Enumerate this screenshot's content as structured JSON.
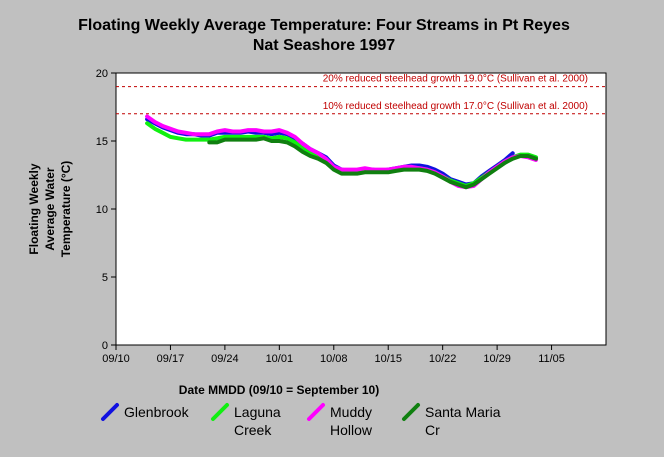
{
  "chart_data": {
    "type": "line",
    "title": "Floating Weekly Average Temperature: Four Streams in Pt Reyes",
    "subtitle": "Nat Seashore 1997",
    "xlabel": "Date MMDD (09/10 = September 10)",
    "ylabel": [
      "Floating Weekly",
      "Average Water",
      "Temperature (°C)"
    ],
    "xlim": [
      0,
      63
    ],
    "ylim": [
      0,
      20
    ],
    "x_ticks": [
      {
        "x": 0,
        "label": "09/10"
      },
      {
        "x": 7,
        "label": "09/17"
      },
      {
        "x": 14,
        "label": "09/24"
      },
      {
        "x": 21,
        "label": "10/01"
      },
      {
        "x": 28,
        "label": "10/08"
      },
      {
        "x": 35,
        "label": "10/15"
      },
      {
        "x": 42,
        "label": "10/22"
      },
      {
        "x": 49,
        "label": "10/29"
      },
      {
        "x": 56,
        "label": "11/05"
      }
    ],
    "y_ticks": [
      0,
      5,
      10,
      15,
      20
    ],
    "grid": false,
    "reference_lines": [
      {
        "y": 19.0,
        "label": "20% reduced steelhead growth 19.0°C (Sullivan et al. 2000)",
        "color": "#c00000"
      },
      {
        "y": 17.0,
        "label": "10% reduced steelhead growth 17.0°C (Sullivan et al. 2000)",
        "color": "#c00000"
      }
    ],
    "series": [
      {
        "name": "Glenbrook",
        "color": "#1010e0",
        "x": [
          4,
          5,
          6,
          7,
          8,
          9,
          10,
          11,
          12,
          13,
          14,
          15,
          16,
          17,
          18,
          19,
          20,
          21,
          22,
          23,
          24,
          25,
          26,
          27,
          28,
          29,
          30,
          31,
          32,
          33,
          34,
          35,
          36,
          37,
          38,
          39,
          40,
          41,
          42,
          43,
          44,
          45,
          46,
          47,
          48,
          49,
          50,
          51
        ],
        "y": [
          16.6,
          16.3,
          16.0,
          15.8,
          15.6,
          15.5,
          15.5,
          15.4,
          15.4,
          15.6,
          15.6,
          15.6,
          15.6,
          15.7,
          15.6,
          15.6,
          15.5,
          15.6,
          15.5,
          15.2,
          14.8,
          14.4,
          14.1,
          13.8,
          13.2,
          12.9,
          12.8,
          12.8,
          12.9,
          12.9,
          12.8,
          12.9,
          13.0,
          13.1,
          13.2,
          13.2,
          13.1,
          12.9,
          12.6,
          12.2,
          12.0,
          11.8,
          11.9,
          12.4,
          12.8,
          13.2,
          13.6,
          14.1
        ]
      },
      {
        "name": "Laguna Creek",
        "color": "#10f010",
        "x": [
          4,
          5,
          6,
          7,
          8,
          9,
          10,
          11,
          12,
          13,
          14,
          15,
          16,
          17,
          18,
          19,
          20,
          21,
          22,
          23,
          24,
          25,
          26,
          27,
          28,
          29,
          30,
          31,
          32,
          33,
          34,
          35,
          36,
          37,
          38,
          39,
          40,
          41,
          42,
          43,
          44,
          45,
          46,
          47,
          48,
          49,
          50,
          51,
          52,
          53,
          54
        ],
        "y": [
          16.3,
          15.9,
          15.6,
          15.3,
          15.2,
          15.1,
          15.1,
          15.1,
          15.1,
          15.2,
          15.3,
          15.3,
          15.3,
          15.3,
          15.3,
          15.3,
          15.2,
          15.3,
          15.2,
          14.9,
          14.5,
          14.1,
          13.9,
          13.5,
          13.0,
          12.7,
          12.7,
          12.7,
          12.8,
          12.8,
          12.8,
          12.8,
          12.9,
          13.0,
          13.0,
          13.0,
          12.9,
          12.7,
          12.4,
          12.1,
          11.9,
          11.7,
          11.9,
          12.3,
          12.7,
          13.1,
          13.5,
          13.8,
          14.0,
          14.0,
          13.8
        ]
      },
      {
        "name": "Muddy Hollow",
        "color": "#ff00ff",
        "x": [
          4,
          5,
          6,
          7,
          8,
          9,
          10,
          11,
          12,
          13,
          14,
          15,
          16,
          17,
          18,
          19,
          20,
          21,
          22,
          23,
          24,
          25,
          26,
          27,
          28,
          29,
          30,
          31,
          32,
          33,
          34,
          35,
          36,
          37,
          38,
          39,
          40,
          41,
          42,
          43,
          44,
          45,
          46,
          47,
          48,
          49,
          50,
          51,
          52,
          53,
          54
        ],
        "y": [
          16.8,
          16.4,
          16.1,
          15.9,
          15.7,
          15.6,
          15.5,
          15.5,
          15.5,
          15.7,
          15.8,
          15.7,
          15.7,
          15.8,
          15.8,
          15.7,
          15.7,
          15.8,
          15.6,
          15.3,
          14.8,
          14.4,
          14.1,
          13.7,
          13.1,
          12.9,
          12.9,
          12.9,
          13.0,
          12.9,
          12.9,
          12.9,
          13.0,
          13.1,
          13.1,
          13.0,
          12.9,
          12.7,
          12.4,
          12.0,
          11.7,
          11.6,
          11.7,
          12.2,
          12.7,
          13.1,
          13.5,
          13.8,
          13.9,
          13.8,
          13.6
        ]
      },
      {
        "name": "Santa Maria Cr",
        "color": "#108010",
        "x": [
          12,
          13,
          14,
          15,
          16,
          17,
          18,
          19,
          20,
          21,
          22,
          23,
          24,
          25,
          26,
          27,
          28,
          29,
          30,
          31,
          32,
          33,
          34,
          35,
          36,
          37,
          38,
          39,
          40,
          41,
          42,
          43,
          44,
          45,
          46,
          47,
          48,
          49,
          50,
          51,
          52,
          53,
          54
        ],
        "y": [
          14.9,
          14.9,
          15.1,
          15.1,
          15.1,
          15.1,
          15.1,
          15.2,
          15.0,
          15.0,
          14.9,
          14.6,
          14.2,
          13.9,
          13.7,
          13.4,
          12.9,
          12.6,
          12.6,
          12.6,
          12.7,
          12.7,
          12.7,
          12.7,
          12.8,
          12.9,
          12.9,
          12.9,
          12.8,
          12.6,
          12.3,
          12.0,
          11.8,
          11.6,
          11.8,
          12.2,
          12.6,
          13.0,
          13.4,
          13.7,
          13.9,
          13.9,
          13.7
        ]
      }
    ],
    "legend": {
      "placement": "bottom",
      "entries": [
        {
          "label_lines": [
            "Glenbrook"
          ],
          "color": "#1010e0"
        },
        {
          "label_lines": [
            "Laguna",
            "Creek"
          ],
          "color": "#10f010"
        },
        {
          "label_lines": [
            "Muddy",
            "Hollow"
          ],
          "color": "#ff00ff"
        },
        {
          "label_lines": [
            "Santa Maria",
            "Cr"
          ],
          "color": "#108010"
        }
      ]
    }
  }
}
